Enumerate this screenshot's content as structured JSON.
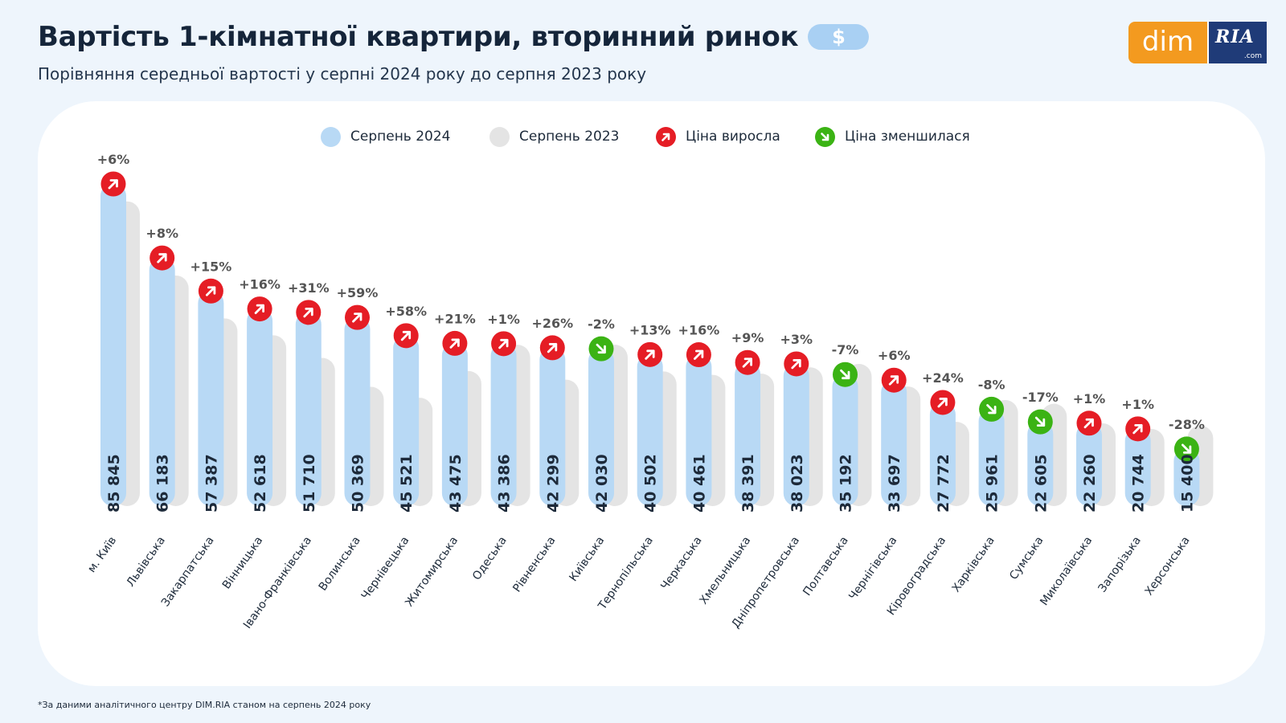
{
  "header": {
    "title": "Вартість 1-кімнатної квартири, вторинний ринок",
    "currency_badge": "$",
    "subtitle": "Порівняння середньої вартості у серпні 2024 року до серпня 2023 року"
  },
  "logo": {
    "left": "dim",
    "right": "RIA",
    "right_suffix": ".com"
  },
  "legend": [
    {
      "label": "Серпень 2024",
      "color": "#b8d9f5"
    },
    {
      "label": "Серпень 2023",
      "color": "#e4e4e4"
    },
    {
      "label": "Ціна виросла",
      "color": "#e51d25",
      "icon": "arrow-up-right-icon"
    },
    {
      "label": "Ціна зменшилася",
      "color": "#3bb314",
      "icon": "arrow-down-right-icon"
    }
  ],
  "colors": {
    "bar_2024": "#b8d9f5",
    "bar_2023": "#e4e4e4",
    "up": "#e51d25",
    "down": "#3bb314",
    "text": "#1d2a3a",
    "change_label": "#555555"
  },
  "footnote": "*За даними аналітичного центру DIM.RIA станом на серпень 2024 року",
  "chart_data": {
    "type": "bar",
    "ylim": [
      0,
      90000
    ],
    "grid": false,
    "legend_position": "top-center",
    "categories": [
      "м. Київ",
      "Львівська",
      "Закарпатська",
      "Вінницька",
      "Івано-Франківська",
      "Волинська",
      "Чернівецька",
      "Житомирська",
      "Одеська",
      "Рівненська",
      "Київська",
      "Тернопільська",
      "Черкаська",
      "Хмельницька",
      "Дніпропетровська",
      "Полтавська",
      "Чернігівська",
      "Кіровоградська",
      "Харківська",
      "Сумська",
      "Миколаївська",
      "Запорізька",
      "Херсонська"
    ],
    "series": [
      {
        "name": "Серпень 2024",
        "values": [
          85845,
          66183,
          57387,
          52618,
          51710,
          50369,
          45521,
          43475,
          43386,
          42299,
          42030,
          40502,
          40461,
          38391,
          38023,
          35192,
          33697,
          27772,
          25961,
          22605,
          22260,
          20744,
          15400
        ]
      },
      {
        "name": "Серпень 2023",
        "values": [
          81000,
          61300,
          49900,
          45400,
          39400,
          31700,
          28800,
          35900,
          42900,
          33600,
          42900,
          35800,
          34900,
          35200,
          36900,
          37800,
          31800,
          22400,
          28200,
          27200,
          22000,
          20500,
          21400
        ]
      }
    ],
    "value_labels": [
      "85 845",
      "66 183",
      "57 387",
      "52 618",
      "51 710",
      "50 369",
      "45 521",
      "43 475",
      "43 386",
      "42 299",
      "42 030",
      "40 502",
      "40 461",
      "38 391",
      "38 023",
      "35 192",
      "33 697",
      "27 772",
      "25 961",
      "22 605",
      "22 260",
      "20 744",
      "15 400"
    ],
    "change_labels": [
      "+6%",
      "+8%",
      "+15%",
      "+16%",
      "+31%",
      "+59%",
      "+58%",
      "+21%",
      "+1%",
      "+26%",
      "-2%",
      "+13%",
      "+16%",
      "+9%",
      "+3%",
      "-7%",
      "+6%",
      "+24%",
      "-8%",
      "-17%",
      "+1%",
      "+1%",
      "-28%"
    ],
    "direction": [
      "up",
      "up",
      "up",
      "up",
      "up",
      "up",
      "up",
      "up",
      "up",
      "up",
      "down",
      "up",
      "up",
      "up",
      "up",
      "down",
      "up",
      "up",
      "down",
      "down",
      "up",
      "up",
      "down"
    ]
  }
}
